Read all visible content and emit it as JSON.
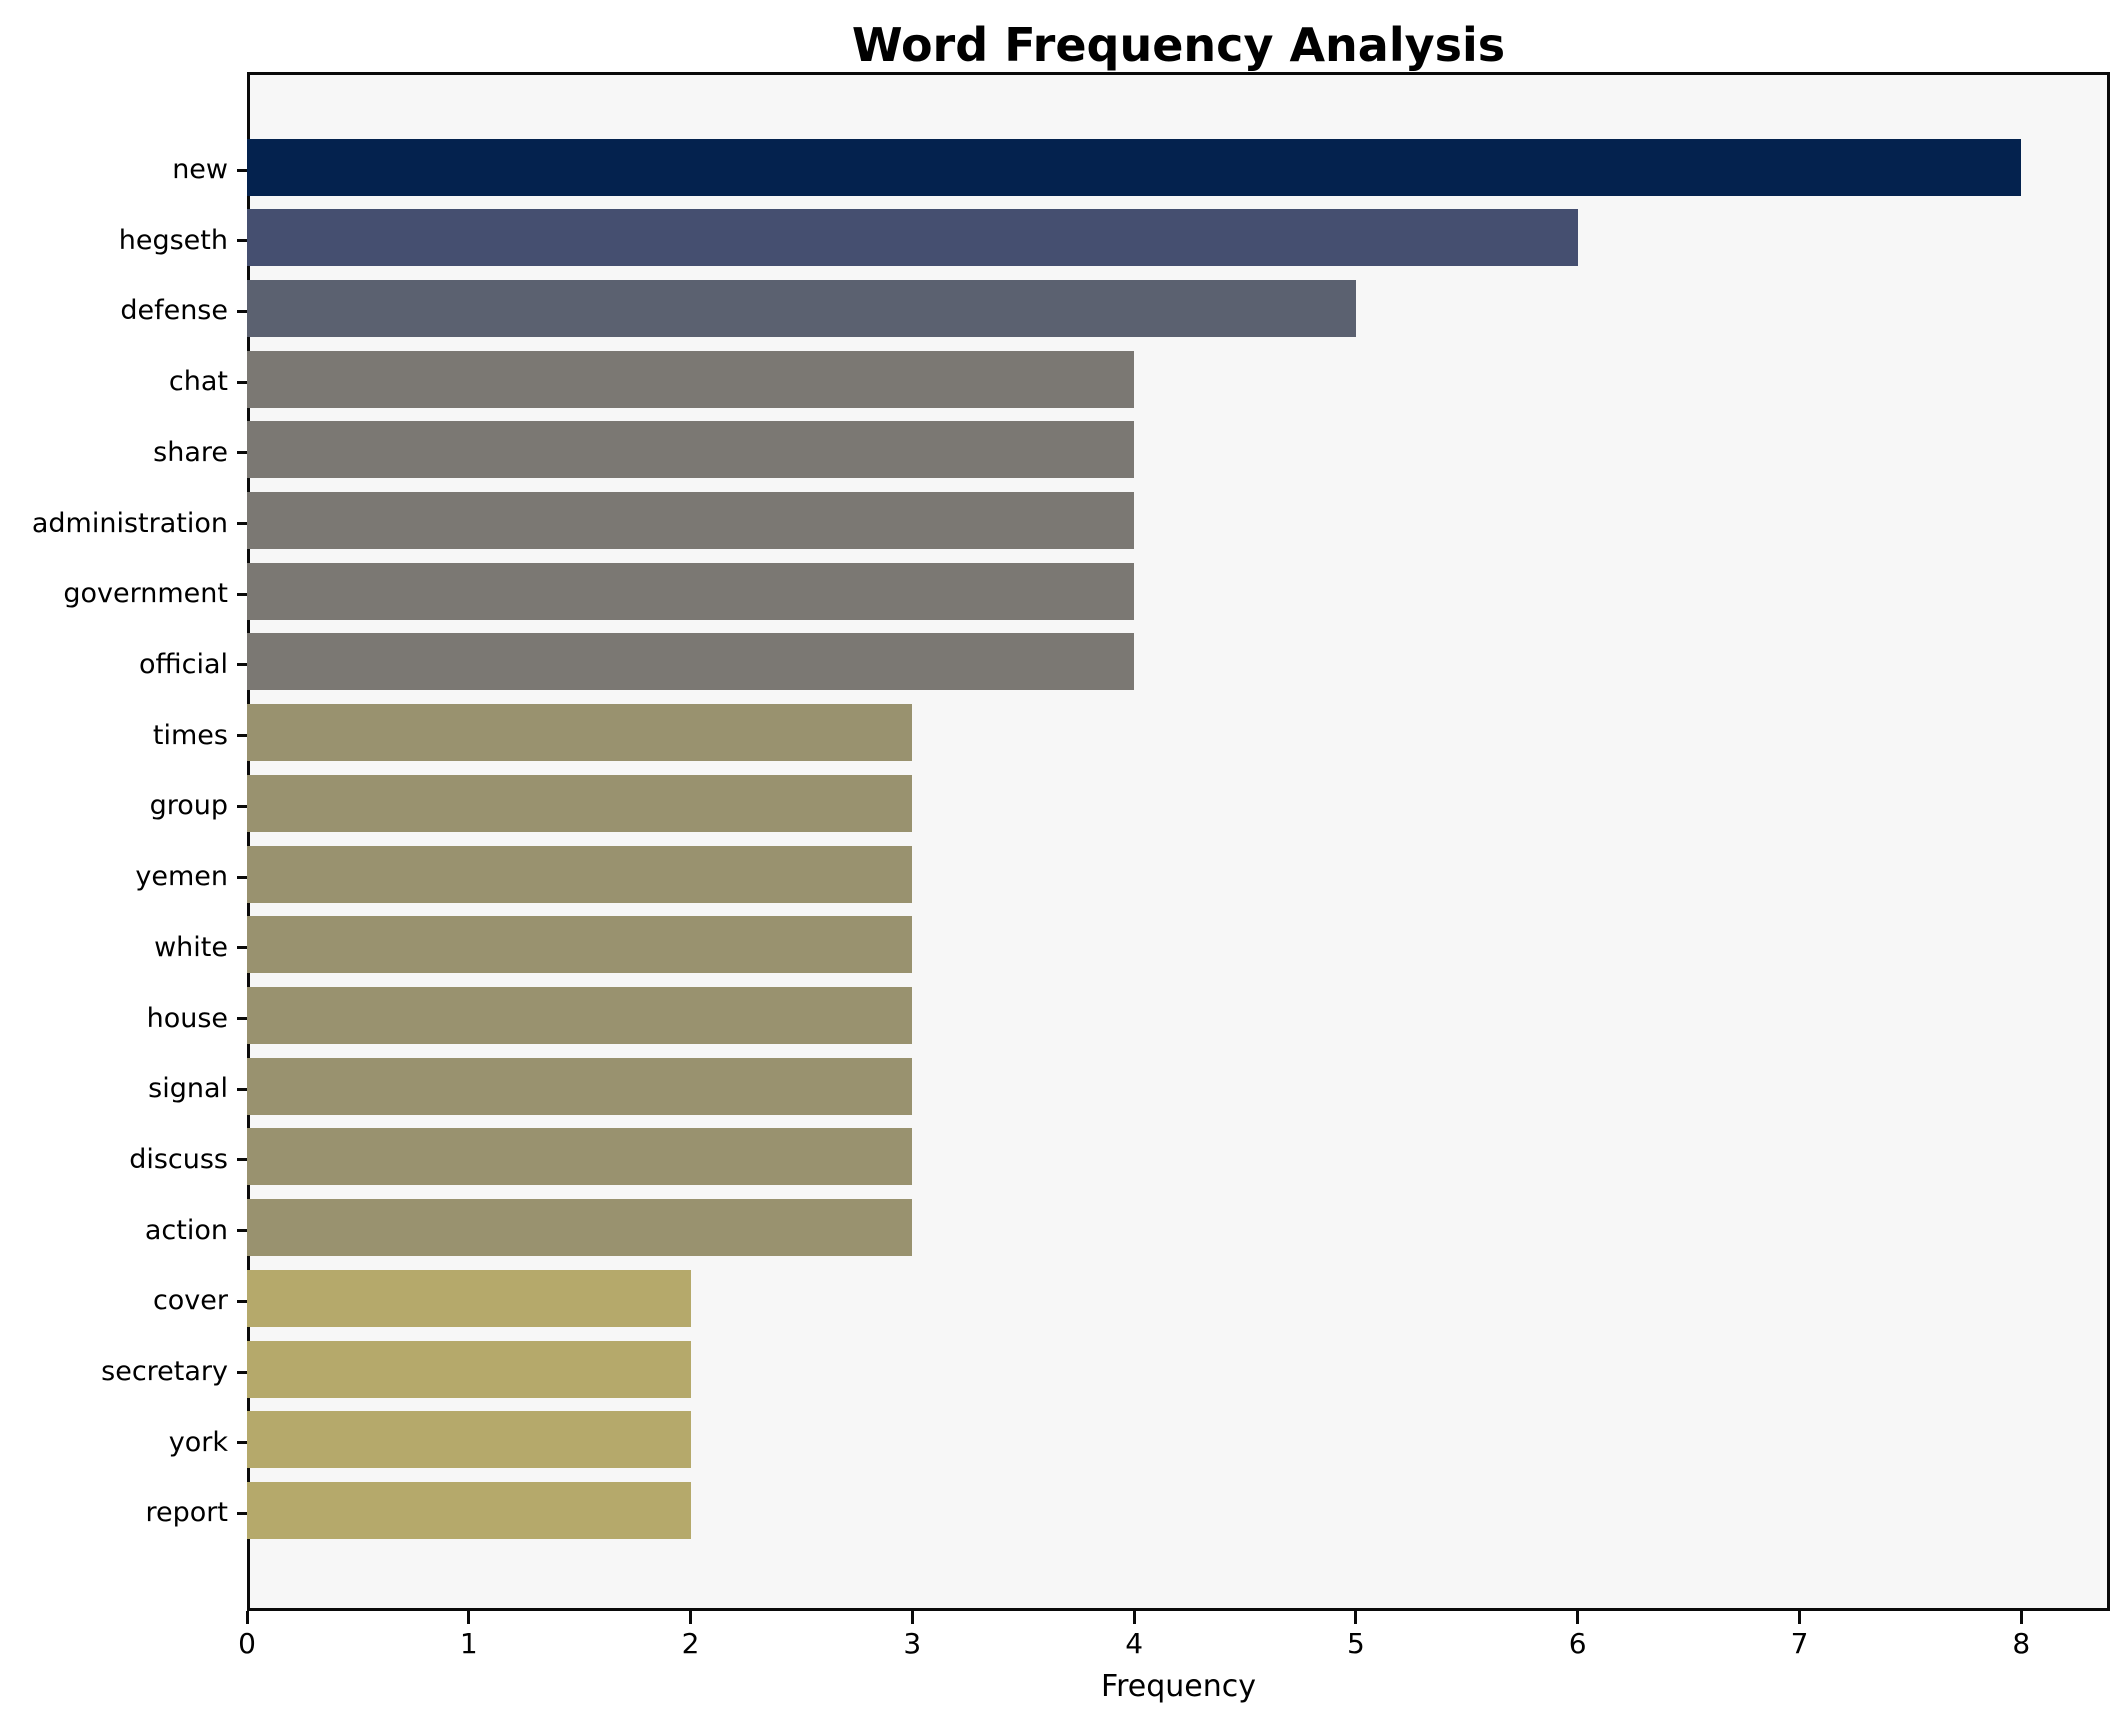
{
  "chart_data": {
    "type": "bar",
    "orientation": "horizontal",
    "title": "Word Frequency Analysis",
    "xlabel": "Frequency",
    "ylabel": "",
    "categories": [
      "new",
      "hegseth",
      "defense",
      "chat",
      "share",
      "administration",
      "government",
      "official",
      "times",
      "group",
      "yemen",
      "white",
      "house",
      "signal",
      "discuss",
      "action",
      "cover",
      "secretary",
      "york",
      "report"
    ],
    "values": [
      8,
      6,
      5,
      4,
      4,
      4,
      4,
      4,
      3,
      3,
      3,
      3,
      3,
      3,
      3,
      3,
      2,
      2,
      2,
      2
    ],
    "bar_colors": [
      "#04224e",
      "#454f70",
      "#5b6170",
      "#7b7873",
      "#7b7873",
      "#7b7873",
      "#7b7873",
      "#7b7873",
      "#99926f",
      "#99926f",
      "#99926f",
      "#99926f",
      "#99926f",
      "#99926f",
      "#99926f",
      "#99926f",
      "#b5a96b",
      "#b5a96b",
      "#b5a96b",
      "#b5a96b"
    ],
    "x_ticks": [
      0,
      1,
      2,
      3,
      4,
      5,
      6,
      7,
      8
    ],
    "xlim": [
      0,
      8.4
    ],
    "grid": false,
    "legend": false,
    "plot_background": "#f7f7f7",
    "figure_background": "#ffffff"
  }
}
